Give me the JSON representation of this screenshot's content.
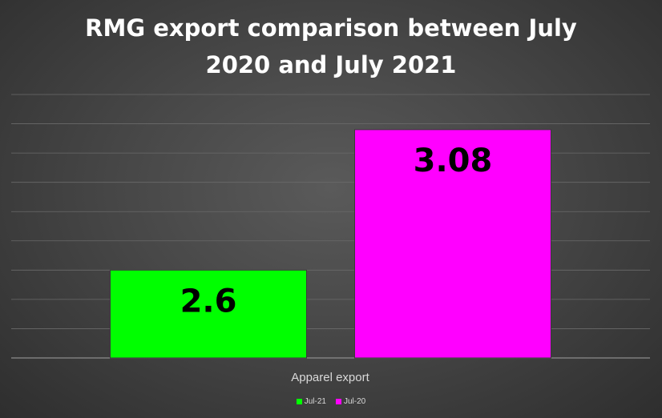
{
  "chart_data": {
    "type": "bar",
    "title_lines": [
      "RMG export comparison between July",
      "2020 and July 2021"
    ],
    "categories": [
      "Apparel export"
    ],
    "series": [
      {
        "name": "Jul-21",
        "values": [
          2.6
        ],
        "color": "#00ff00"
      },
      {
        "name": "Jul-20",
        "values": [
          3.08
        ],
        "color": "#ff00ff"
      }
    ],
    "data_labels": [
      "2.6",
      "3.08"
    ],
    "xlabel": "",
    "ylabel": "",
    "ylim": [
      2.3,
      3.2
    ],
    "grid": true,
    "legend": "bottom"
  }
}
